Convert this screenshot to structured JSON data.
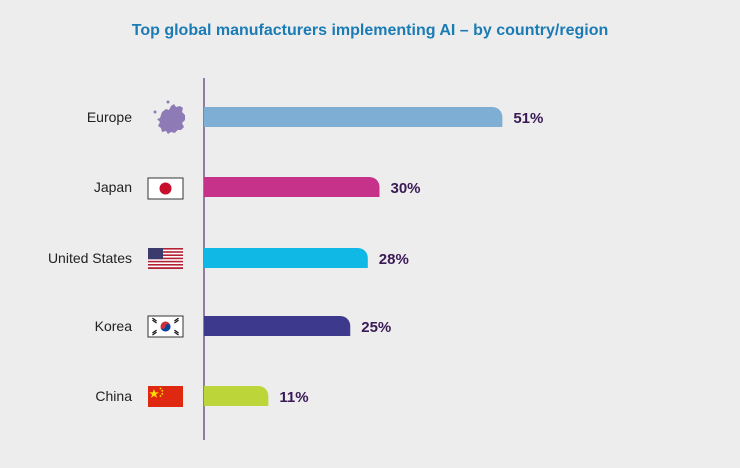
{
  "chart_data": {
    "type": "bar",
    "orientation": "horizontal",
    "title": "Top global manufacturers implementing AI – by country/region",
    "categories": [
      "Europe",
      "Japan",
      "United States",
      "Korea",
      "China"
    ],
    "values": [
      51,
      30,
      28,
      25,
      11
    ],
    "value_labels": [
      "51%",
      "30%",
      "28%",
      "25%",
      "11%"
    ],
    "icons": [
      "eu-map-icon",
      "japan-flag-icon",
      "usa-flag-icon",
      "korea-flag-icon",
      "china-flag-icon"
    ],
    "bar_colors": [
      "#7eaed4",
      "#c6318a",
      "#10b8e6",
      "#3d3a8e",
      "#bcd63a"
    ],
    "xlim": [
      0,
      100
    ],
    "grid": false,
    "legend": "none"
  },
  "colors": {
    "background": "#ededed",
    "title": "#1a7bb5",
    "value_text": "#3a1a55",
    "axis": "#6d4b7e"
  }
}
